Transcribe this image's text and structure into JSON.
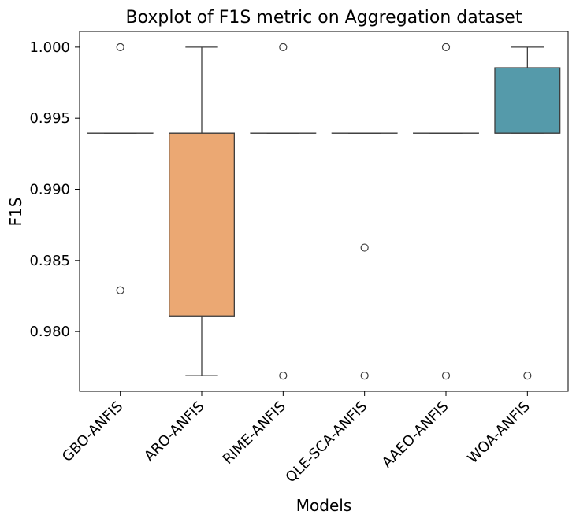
{
  "chart_data": {
    "type": "box",
    "title": "Boxplot of F1S metric on Aggregation dataset",
    "xlabel": "Models",
    "ylabel": "F1S",
    "ylim": [
      0.9758,
      1.0011
    ],
    "yticks": [
      "0.980",
      "0.985",
      "0.990",
      "0.995",
      "1.000"
    ],
    "grid": false,
    "categories": [
      "GBO-ANFIS",
      "ARO-ANFIS",
      "RIME-ANFIS",
      "QLE-SCA-ANFIS",
      "AAEO-ANFIS",
      "WOA-ANFIS"
    ],
    "boxes": [
      {
        "name": "GBO-ANFIS",
        "color": "#3f76b0",
        "q1": 0.99395,
        "median": 0.99395,
        "q3": 0.99395,
        "whisker_low": 0.99395,
        "whisker_high": 0.99395,
        "outliers": [
          1.0,
          0.9829
        ]
      },
      {
        "name": "ARO-ANFIS",
        "color": "#eba873",
        "q1": 0.9811,
        "median": 0.99395,
        "q3": 0.99395,
        "whisker_low": 0.9769,
        "whisker_high": 1.0,
        "outliers": []
      },
      {
        "name": "RIME-ANFIS",
        "color": "#4e9e4e",
        "q1": 0.99395,
        "median": 0.99395,
        "q3": 0.99395,
        "whisker_low": 0.99395,
        "whisker_high": 0.99395,
        "outliers": [
          1.0,
          0.9769
        ]
      },
      {
        "name": "QLE-SCA-ANFIS",
        "color": "#c44e52",
        "q1": 0.99395,
        "median": 0.99395,
        "q3": 0.99395,
        "whisker_low": 0.99395,
        "whisker_high": 0.99395,
        "outliers": [
          0.9859,
          0.9769
        ]
      },
      {
        "name": "AAEO-ANFIS",
        "color": "#8172b3",
        "q1": 0.99395,
        "median": 0.99395,
        "q3": 0.99395,
        "whisker_low": 0.99395,
        "whisker_high": 0.99395,
        "outliers": [
          1.0,
          0.9769
        ]
      },
      {
        "name": "WOA-ANFIS",
        "color": "#559aaa",
        "q1": 0.99395,
        "median": 0.99395,
        "q3": 0.99855,
        "whisker_low": 0.99395,
        "whisker_high": 1.0,
        "outliers": [
          0.9769
        ]
      }
    ]
  }
}
